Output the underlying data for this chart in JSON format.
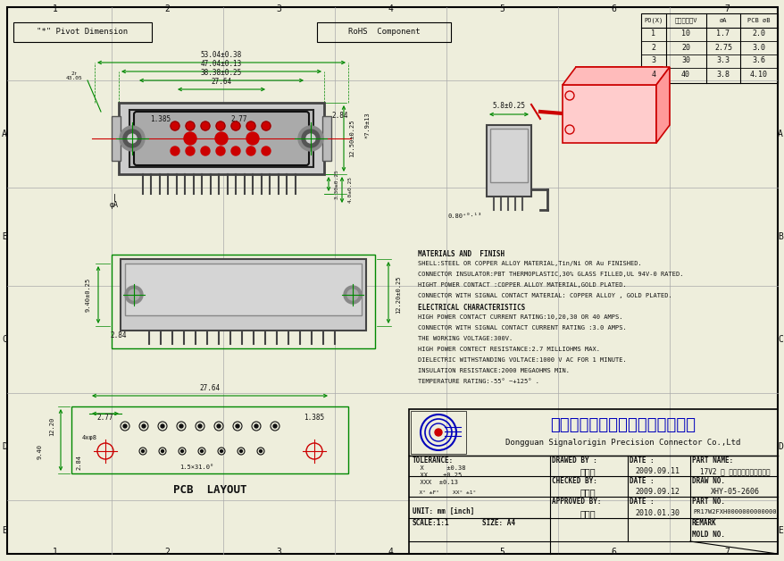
{
  "background": "#eeeedc",
  "border_color": "#000000",
  "green_color": "#008800",
  "red_color": "#cc0000",
  "blue_color": "#0000bb",
  "dark_color": "#111111",
  "grid_cols": [
    0,
    125,
    250,
    375,
    500,
    625,
    750,
    879
  ],
  "grid_rows": [
    0,
    90,
    210,
    320,
    440,
    560,
    628
  ],
  "row_labels": [
    "A",
    "B",
    "C",
    "D",
    "E"
  ],
  "col_labels": [
    "1",
    "2",
    "3",
    "4",
    "5",
    "6",
    "7"
  ],
  "pivot_text": "\"*\" Pivot Dimension",
  "rohs_text": "RoHS  Component",
  "table_headers": [
    "PO(X)",
    "电流额定山V",
    "∅A",
    "PCB ∅B"
  ],
  "table_data": [
    [
      "1",
      "10",
      "1.7",
      "2.0"
    ],
    [
      "2",
      "20",
      "2.75",
      "3.0"
    ],
    [
      "3",
      "30",
      "3.3",
      "3.6"
    ],
    [
      "4",
      "40",
      "3.8",
      "4.10"
    ]
  ],
  "materials_text": [
    "MATERIALS AND  FINISH",
    "SHELL:STEEL OR COPPER ALLOY MATERIAL,Tin/Ni OR Au FINISHED.",
    "CONNECTOR INSULATOR:PBT THERMOPLASTIC,30% GLASS FILLED,UL 94V-0 RATED.",
    "HIGHT POWER CONTACT :COPPER ALLOY MATERIAL,GOLD PLATED.",
    "CONNECTOR WITH SIGNAL CONTACT MATERIAL: COPPER ALLOY , GOLD PLATED.",
    "ELECTRICAL CHARACTERISTICS",
    "HIGH POWER CONTACT CURRENT RATING:10,20,30 OR 40 AMPS.",
    "CONNECTOR WITH SIGNAL CONTACT CURRENT RATING :3.0 AMPS.",
    "THE WORKING VOLTAGE:300V.",
    "HIGH POWER CONTECT RESISTANCE:2.7 MILLIOHMS MAX.",
    "DIELECTRIC WITHSTANDING VOLTACE:1000 V AC FOR 1 MINUTE.",
    "INSULATION RESISTANCE:2000 MEGAOHMS MIN.",
    "TEMPERATURE RATING:-55° ~+125° ."
  ],
  "title_block": {
    "company_cn": "东菞市迅飙原精密连接器有限公司",
    "company_en": "Dongguan Signalorigin Precision Connector Co.,Ltd",
    "drawn_by": "杨冬梅",
    "drawn_date": "2009.09.11",
    "checked_by": "余飞仙",
    "checked_date": "2009.09.12",
    "approved_by": "桐山超",
    "approved_date": "2010.01.30",
    "part_name": "17V2 型 电流高婆板式传统联合",
    "draw_no": "XHY-05-2606",
    "part_no": "PR17W2FXH0000000000000",
    "remark": "",
    "mold_no": ""
  }
}
